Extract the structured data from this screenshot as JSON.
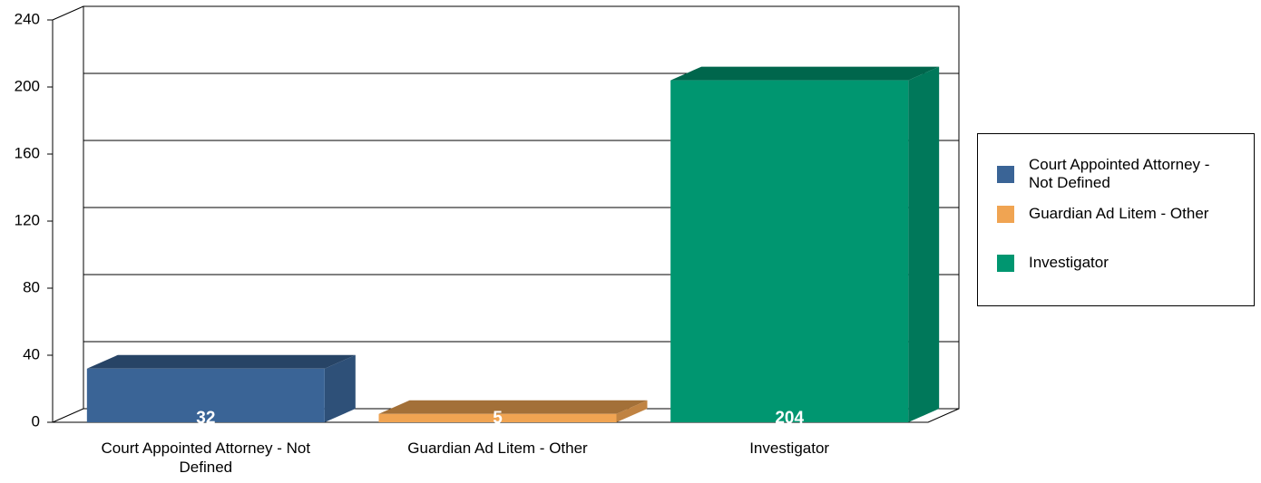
{
  "chart_data": {
    "type": "bar",
    "categories": [
      "Court Appointed Attorney - Not Defined",
      "Guardian Ad Litem - Other",
      "Investigator"
    ],
    "values": [
      32,
      5,
      204
    ],
    "colors": [
      "#3a6496",
      "#f0a452",
      "#009670"
    ],
    "ylim": [
      0,
      240
    ],
    "yticks": [
      0,
      40,
      80,
      120,
      160,
      200,
      240
    ],
    "grid": true,
    "legend": "right"
  }
}
